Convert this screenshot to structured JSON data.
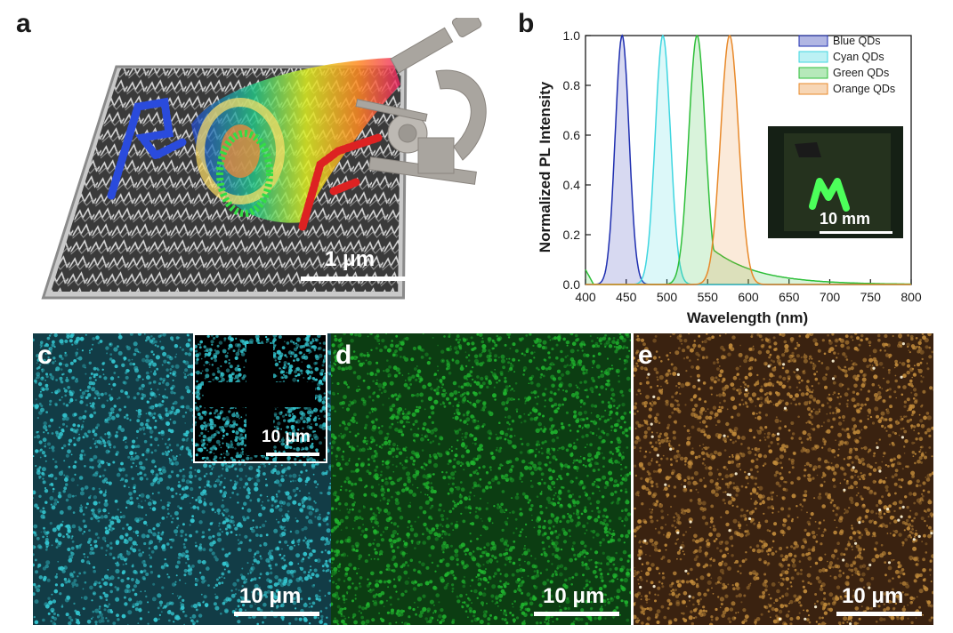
{
  "panels": {
    "a": {
      "letter": "a",
      "scale_label": "1 μm"
    },
    "b": {
      "letter": "b",
      "inset_scale_label": "10 mm"
    },
    "c": {
      "letter": "c",
      "scale_label": "10 μm",
      "inset_scale_label": "10 μm"
    },
    "d": {
      "letter": "d",
      "scale_label": "10 μm"
    },
    "e": {
      "letter": "e",
      "scale_label": "10 μm"
    }
  },
  "colors": {
    "blue": "#1f2fb0",
    "cyan": "#3fd6e0",
    "green": "#2fbf3a",
    "orange": "#e8892a",
    "cyan_texture": "#34c8d2",
    "green_texture": "#20b42e",
    "gold_texture": "#c08a3a"
  },
  "chart_data": {
    "type": "line",
    "xlabel": "Wavelength (nm)",
    "ylabel": "Normalized PL Intensity",
    "xlim": [
      400,
      800
    ],
    "ylim": [
      0,
      1.0
    ],
    "x_ticks": [
      "400",
      "450",
      "500",
      "550",
      "600",
      "650",
      "700",
      "750",
      "800"
    ],
    "y_ticks": [
      "0.0",
      "0.2",
      "0.4",
      "0.6",
      "0.8",
      "1.0"
    ],
    "legend_position": "top-right",
    "series": [
      {
        "name": "Blue QDs",
        "color": "#1f2fb0",
        "peak": 445,
        "fwhm": 20,
        "values": [
          [
            415,
            0.02
          ],
          [
            425,
            0.1
          ],
          [
            435,
            0.45
          ],
          [
            445,
            1.0
          ],
          [
            455,
            0.45
          ],
          [
            465,
            0.1
          ],
          [
            475,
            0.02
          ],
          [
            490,
            0.0
          ]
        ]
      },
      {
        "name": "Cyan QDs",
        "color": "#3fd6e0",
        "peak": 495,
        "fwhm": 22,
        "values": [
          [
            465,
            0.02
          ],
          [
            475,
            0.1
          ],
          [
            485,
            0.45
          ],
          [
            495,
            1.0
          ],
          [
            505,
            0.45
          ],
          [
            515,
            0.1
          ],
          [
            525,
            0.02
          ],
          [
            540,
            0.0
          ]
        ]
      },
      {
        "name": "Green QDs",
        "color": "#2fbf3a",
        "peak": 537,
        "fwhm": 24,
        "values": [
          [
            505,
            0.02
          ],
          [
            515,
            0.1
          ],
          [
            527,
            0.5
          ],
          [
            537,
            1.0
          ],
          [
            547,
            0.5
          ],
          [
            560,
            0.25
          ],
          [
            600,
            0.13
          ],
          [
            650,
            0.05
          ],
          [
            700,
            0.01
          ]
        ]
      },
      {
        "name": "Orange QDs",
        "color": "#e8892a",
        "peak": 577,
        "fwhm": 26,
        "values": [
          [
            545,
            0.02
          ],
          [
            555,
            0.1
          ],
          [
            567,
            0.5
          ],
          [
            577,
            1.0
          ],
          [
            587,
            0.5
          ],
          [
            600,
            0.12
          ],
          [
            620,
            0.03
          ],
          [
            650,
            0.01
          ]
        ]
      }
    ]
  }
}
